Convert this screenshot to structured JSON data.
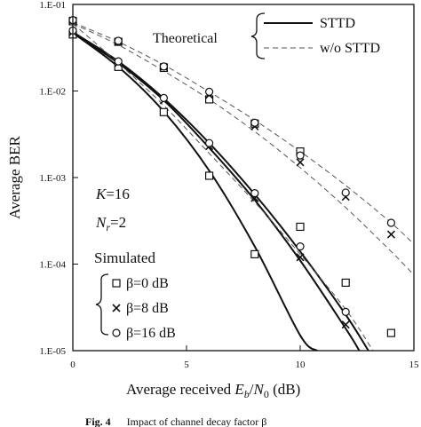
{
  "chart_data": {
    "type": "line",
    "title": "",
    "xlabel": "Average received E_b/N_0 (dB)",
    "xlabel_parts": {
      "prefix": "Average received ",
      "E": "E",
      "b": "b",
      "slash": "/",
      "N": "N",
      "zero": "0",
      "unit": " (dB)"
    },
    "ylabel": "Average BER",
    "xlim": [
      0,
      15
    ],
    "ylim": [
      1e-05,
      0.1
    ],
    "yscale": "log",
    "x_ticks": [
      "0",
      "5",
      "10",
      "15"
    ],
    "y_ticks": [
      "1.E-01",
      "1.E-02",
      "1.E-03",
      "1.E-04",
      "1.E-05"
    ],
    "grid": false,
    "legend": {
      "group_label": "Theoretical",
      "entries": [
        {
          "label": "STTD",
          "style": "solid"
        },
        {
          "label": "w/o STTD",
          "style": "dashed"
        }
      ]
    },
    "annotations": {
      "K": "K=16",
      "K_parts": {
        "sym": "K",
        "rest": "=16"
      },
      "Nr": "N_r=2",
      "Nr_parts": {
        "sym": "N",
        "sub": "r",
        "rest": "=2"
      },
      "simulated": "Simulated",
      "markers": [
        {
          "marker": "square",
          "label": "β=0 dB"
        },
        {
          "marker": "x",
          "label": "β=8 dB"
        },
        {
          "marker": "circle",
          "label": "β=16 dB"
        }
      ]
    },
    "caption": {
      "prefix": "Fig. 4",
      "text": "Impact of channel decay factor β"
    },
    "theory_series": [
      {
        "name": "STTD β=0 dB",
        "style": "solid",
        "x": [
          0,
          2,
          4,
          6,
          8,
          10,
          10.75
        ],
        "y": [
          0.047,
          0.019,
          0.0058,
          0.0012,
          0.00016,
          1.5e-05,
          1e-05
        ]
      },
      {
        "name": "STTD β=8 dB",
        "style": "solid",
        "x": [
          0,
          2,
          4,
          6,
          8,
          10,
          12,
          12.6
        ],
        "y": [
          0.047,
          0.021,
          0.0078,
          0.0022,
          0.00055,
          0.00011,
          1.8e-05,
          1e-05
        ]
      },
      {
        "name": "STTD β=16 dB",
        "style": "solid",
        "x": [
          0,
          2,
          4,
          6,
          8,
          10,
          12,
          13
        ],
        "y": [
          0.048,
          0.022,
          0.0082,
          0.0025,
          0.00064,
          0.00014,
          2.6e-05,
          1e-05
        ]
      },
      {
        "name": "w/o STTD β=0 dB",
        "style": "dashed",
        "x": [
          0,
          2,
          4,
          6,
          8,
          10,
          12,
          13.2
        ],
        "y": [
          0.06,
          0.021,
          0.0068,
          0.0019,
          0.00052,
          0.00013,
          3e-05,
          1e-05
        ]
      },
      {
        "name": "w/o STTD β=8 dB",
        "style": "dashed",
        "x": [
          0,
          2,
          4,
          6,
          8,
          10,
          12,
          14,
          15
        ],
        "y": [
          0.06,
          0.034,
          0.017,
          0.008,
          0.0034,
          0.0013,
          0.00045,
          0.00014,
          7.5e-05
        ]
      },
      {
        "name": "w/o STTD β=16 dB",
        "style": "dashed",
        "x": [
          0,
          2,
          4,
          6,
          8,
          10,
          12,
          14,
          15
        ],
        "y": [
          0.062,
          0.037,
          0.02,
          0.0098,
          0.0046,
          0.002,
          0.00081,
          0.0003,
          0.00017
        ]
      }
    ],
    "sim_series": [
      {
        "name": "β=0 dB, STTD",
        "marker": "square",
        "x": [
          0,
          2,
          4,
          6,
          8,
          10,
          12,
          14
        ],
        "y": [
          0.045,
          0.019,
          0.0057,
          0.00105,
          0.00013,
          0.00027,
          6.1e-05,
          1.6e-05
        ]
      },
      {
        "name": "β=0 dB, w/o STTD",
        "marker": "square",
        "x": [
          0,
          2,
          4,
          6,
          8,
          10
        ],
        "y": [
          0.064,
          0.037,
          0.0185,
          0.008,
          0.0042,
          0.002
        ]
      },
      {
        "name": "β=8 dB, STTD",
        "marker": "x",
        "x": [
          0,
          2,
          4,
          6,
          8,
          10,
          12
        ],
        "y": [
          0.048,
          0.021,
          0.0078,
          0.0023,
          0.00058,
          0.00012,
          2e-05
        ]
      },
      {
        "name": "β=8 dB, w/o STTD",
        "marker": "x",
        "x": [
          0,
          2,
          4,
          6,
          8,
          10,
          12,
          14
        ],
        "y": [
          0.065,
          0.037,
          0.019,
          0.009,
          0.0039,
          0.0015,
          0.0006,
          0.00022
        ]
      },
      {
        "name": "β=16 dB, STTD",
        "marker": "circle",
        "x": [
          0,
          2,
          4,
          6,
          8,
          10,
          12
        ],
        "y": [
          0.05,
          0.022,
          0.0083,
          0.0025,
          0.00066,
          0.00016,
          2.8e-05
        ]
      },
      {
        "name": "β=16 dB, w/o STTD",
        "marker": "circle",
        "x": [
          0,
          2,
          4,
          6,
          8,
          10,
          12,
          14
        ],
        "y": [
          0.066,
          0.038,
          0.0192,
          0.0098,
          0.0043,
          0.0018,
          0.00067,
          0.0003
        ]
      }
    ]
  }
}
